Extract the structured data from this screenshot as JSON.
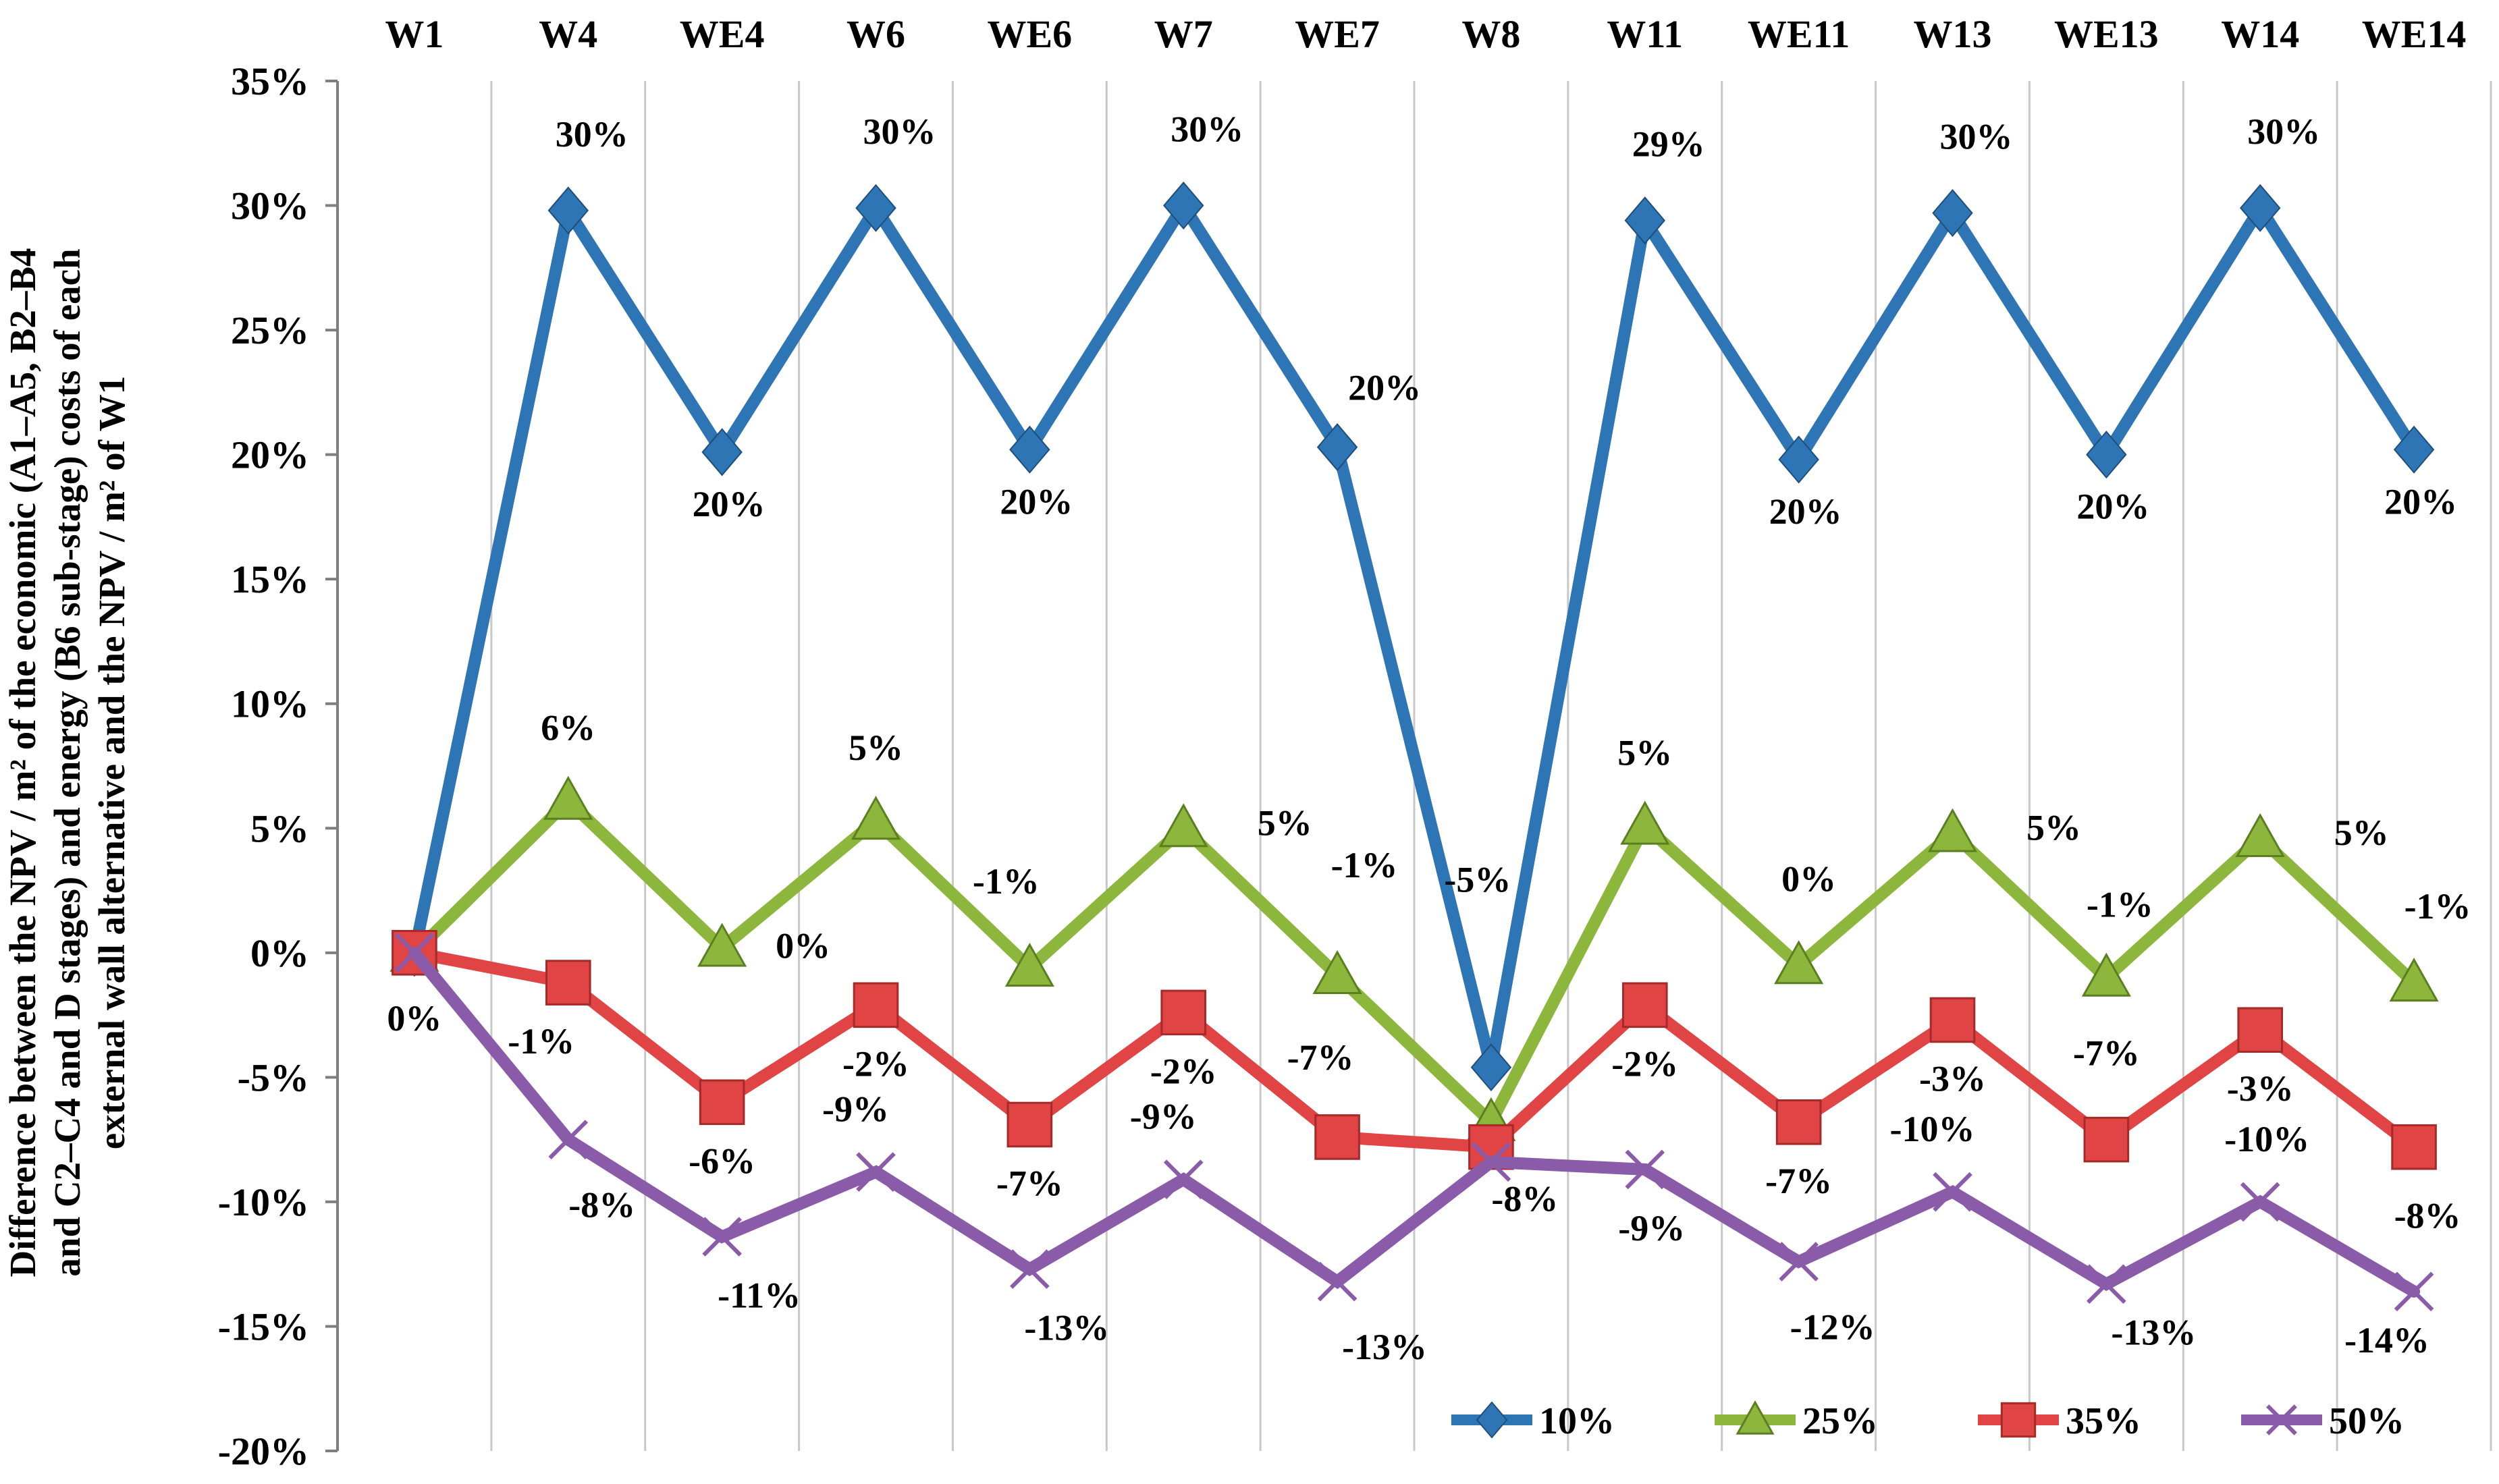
{
  "chart_data": {
    "type": "line",
    "title": "",
    "ylabel_lines": [
      "Difference between the NPV / m² of the economic (A1–A5, B2–B4",
      "and C2–C4 and D stages) and energy (B6 sub-stage) costs of each",
      "external wall alternative and the NPV / m² of W1"
    ],
    "categories": [
      "W1",
      "W4",
      "WE4",
      "W6",
      "WE6",
      "W7",
      "WE7",
      "W8",
      "W11",
      "WE11",
      "W13",
      "WE13",
      "W14",
      "WE14"
    ],
    "ylim": [
      -20,
      35
    ],
    "yticks": [
      -20,
      -15,
      -10,
      -5,
      0,
      5,
      10,
      15,
      20,
      25,
      30,
      35
    ],
    "ytick_labels": [
      "-20%",
      "-15%",
      "-10%",
      "-5%",
      "0%",
      "5%",
      "10%",
      "15%",
      "20%",
      "25%",
      "30%",
      "35%"
    ],
    "grid": "vertical",
    "legend_position": "bottom-right",
    "series": [
      {
        "name": "10%",
        "color": "#2E75B6",
        "marker": "diamond",
        "values": [
          0,
          29.8,
          20.1,
          29.9,
          20.2,
          30.0,
          20.3,
          -4.6,
          29.4,
          19.8,
          29.7,
          20.0,
          29.9,
          20.2
        ],
        "labels": [
          "",
          "30%",
          "20%",
          "30%",
          "20%",
          "30%",
          "20%",
          "-5%",
          "29%",
          "20%",
          "30%",
          "20%",
          "30%",
          "20%"
        ]
      },
      {
        "name": "25%",
        "color": "#8DB63C",
        "marker": "triangle",
        "values": [
          0,
          6.1,
          0.2,
          5.3,
          -0.6,
          5.0,
          -0.9,
          -6.8,
          5.1,
          -0.5,
          4.8,
          -1.0,
          4.6,
          -1.2
        ],
        "labels": [
          "",
          "6%",
          "0%",
          "5%",
          "-1%",
          "5%",
          "-1%",
          "",
          "5%",
          "0%",
          "5%",
          "-1%",
          "5%",
          "-1%"
        ]
      },
      {
        "name": "35%",
        "color": "#E04444",
        "marker": "square",
        "values": [
          0,
          -1.2,
          -6.0,
          -2.1,
          -6.9,
          -2.4,
          -7.4,
          -7.8,
          -2.1,
          -6.8,
          -2.7,
          -7.5,
          -3.1,
          -7.8
        ],
        "labels": [
          "0%",
          "-1%",
          "-6%",
          "-2%",
          "-7%",
          "-2%",
          "-7%",
          "-8%",
          "-2%",
          "-7%",
          "-3%",
          "-7%",
          "-3%",
          "-8%"
        ]
      },
      {
        "name": "50%",
        "color": "#8A5BA8",
        "marker": "x",
        "values": [
          0,
          -7.5,
          -11.4,
          -8.8,
          -12.7,
          -9.1,
          -13.2,
          -8.4,
          -8.7,
          -12.4,
          -9.6,
          -13.3,
          -10.0,
          -13.6
        ],
        "labels": [
          "",
          "-8%",
          "-11%",
          "-9%",
          "-13%",
          "-9%",
          "-13%",
          "",
          "-9%",
          "-12%",
          "-10%",
          "-13%",
          "-10%",
          "-14%"
        ]
      }
    ]
  }
}
